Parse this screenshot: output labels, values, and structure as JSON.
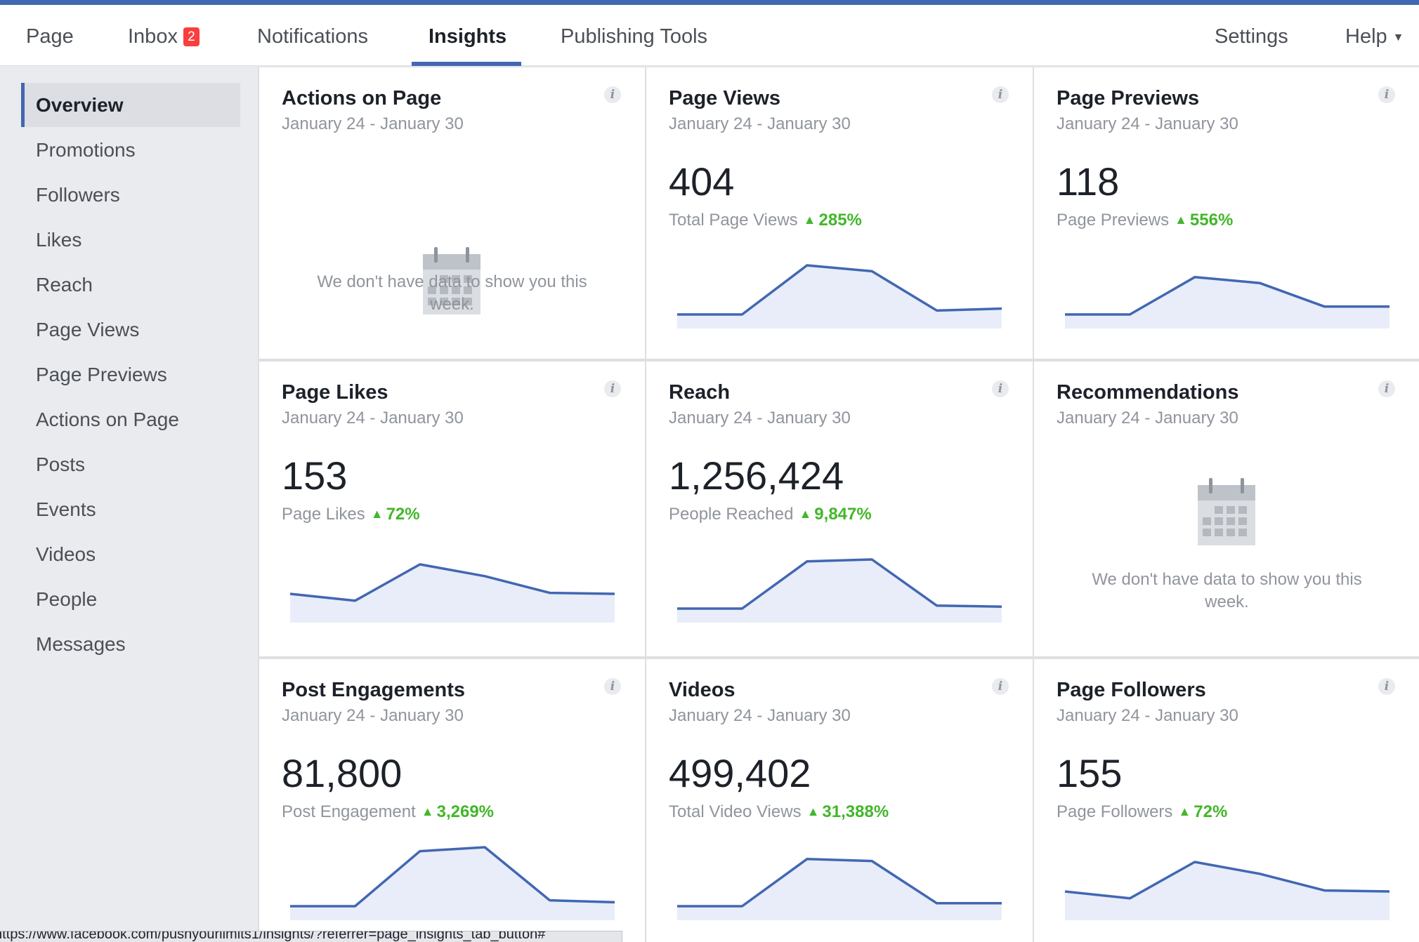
{
  "topnav": {
    "tabs": [
      {
        "label": "Page"
      },
      {
        "label": "Inbox",
        "badge": "2"
      },
      {
        "label": "Notifications"
      },
      {
        "label": "Insights",
        "active": true
      },
      {
        "label": "Publishing Tools"
      }
    ],
    "settings_label": "Settings",
    "help_label": "Help"
  },
  "sidebar": {
    "items": [
      {
        "label": "Overview",
        "active": true
      },
      {
        "label": "Promotions"
      },
      {
        "label": "Followers"
      },
      {
        "label": "Likes"
      },
      {
        "label": "Reach"
      },
      {
        "label": "Page Views"
      },
      {
        "label": "Page Previews"
      },
      {
        "label": "Actions on Page"
      },
      {
        "label": "Posts"
      },
      {
        "label": "Events"
      },
      {
        "label": "Videos"
      },
      {
        "label": "People"
      },
      {
        "label": "Messages"
      }
    ]
  },
  "cards": [
    {
      "title": "Actions on Page",
      "date": "January 24 - January 30",
      "no_data": "We don't have data to show you this week."
    },
    {
      "title": "Page Views",
      "date": "January 24 - January 30",
      "value": "404",
      "metric_label": "Total Page Views",
      "change": "285%",
      "trend": [
        1,
        1,
        6,
        5.4,
        1.4,
        1.6
      ]
    },
    {
      "title": "Page Previews",
      "date": "January 24 - January 30",
      "value": "118",
      "metric_label": "Page Previews",
      "change": "556%",
      "trend": [
        1,
        1,
        4.8,
        4.2,
        1.8,
        1.8
      ]
    },
    {
      "title": "Page Likes",
      "date": "January 24 - January 30",
      "value": "153",
      "metric_label": "Page Likes",
      "change": "72%",
      "trend": [
        2.5,
        1.8,
        5.5,
        4.3,
        2.6,
        2.5
      ]
    },
    {
      "title": "Reach",
      "date": "January 24 - January 30",
      "value": "1,256,424",
      "metric_label": "People Reached",
      "change": "9,847%",
      "trend": [
        1,
        1,
        5.8,
        6,
        1.3,
        1.2
      ]
    },
    {
      "title": "Recommendations",
      "date": "January 24 - January 30",
      "no_data": "We don't have data to show you this week."
    },
    {
      "title": "Post Engagements",
      "date": "January 24 - January 30",
      "value": "81,800",
      "metric_label": "Post Engagement",
      "change": "3,269%",
      "trend": [
        1,
        1,
        6.6,
        7,
        1.6,
        1.4
      ]
    },
    {
      "title": "Videos",
      "date": "January 24 - January 30",
      "value": "499,402",
      "metric_label": "Total Video Views",
      "change": "31,388%",
      "trend": [
        1,
        1,
        5.8,
        5.6,
        1.3,
        1.3
      ]
    },
    {
      "title": "Page Followers",
      "date": "January 24 - January 30",
      "value": "155",
      "metric_label": "Page Followers",
      "change": "72%",
      "trend": [
        2.5,
        1.8,
        5.5,
        4.3,
        2.6,
        2.5
      ]
    }
  ],
  "statusbar": {
    "url": "https://www.facebook.com/pushyourlimits1/insights/?referrer=page_insights_tab_button#"
  },
  "colors": {
    "accent": "#4267b2",
    "positive": "#42b72a",
    "badge": "#fa3e3e",
    "sparkline": "#4267b2",
    "sparkline_fill": "#e8edf9"
  }
}
